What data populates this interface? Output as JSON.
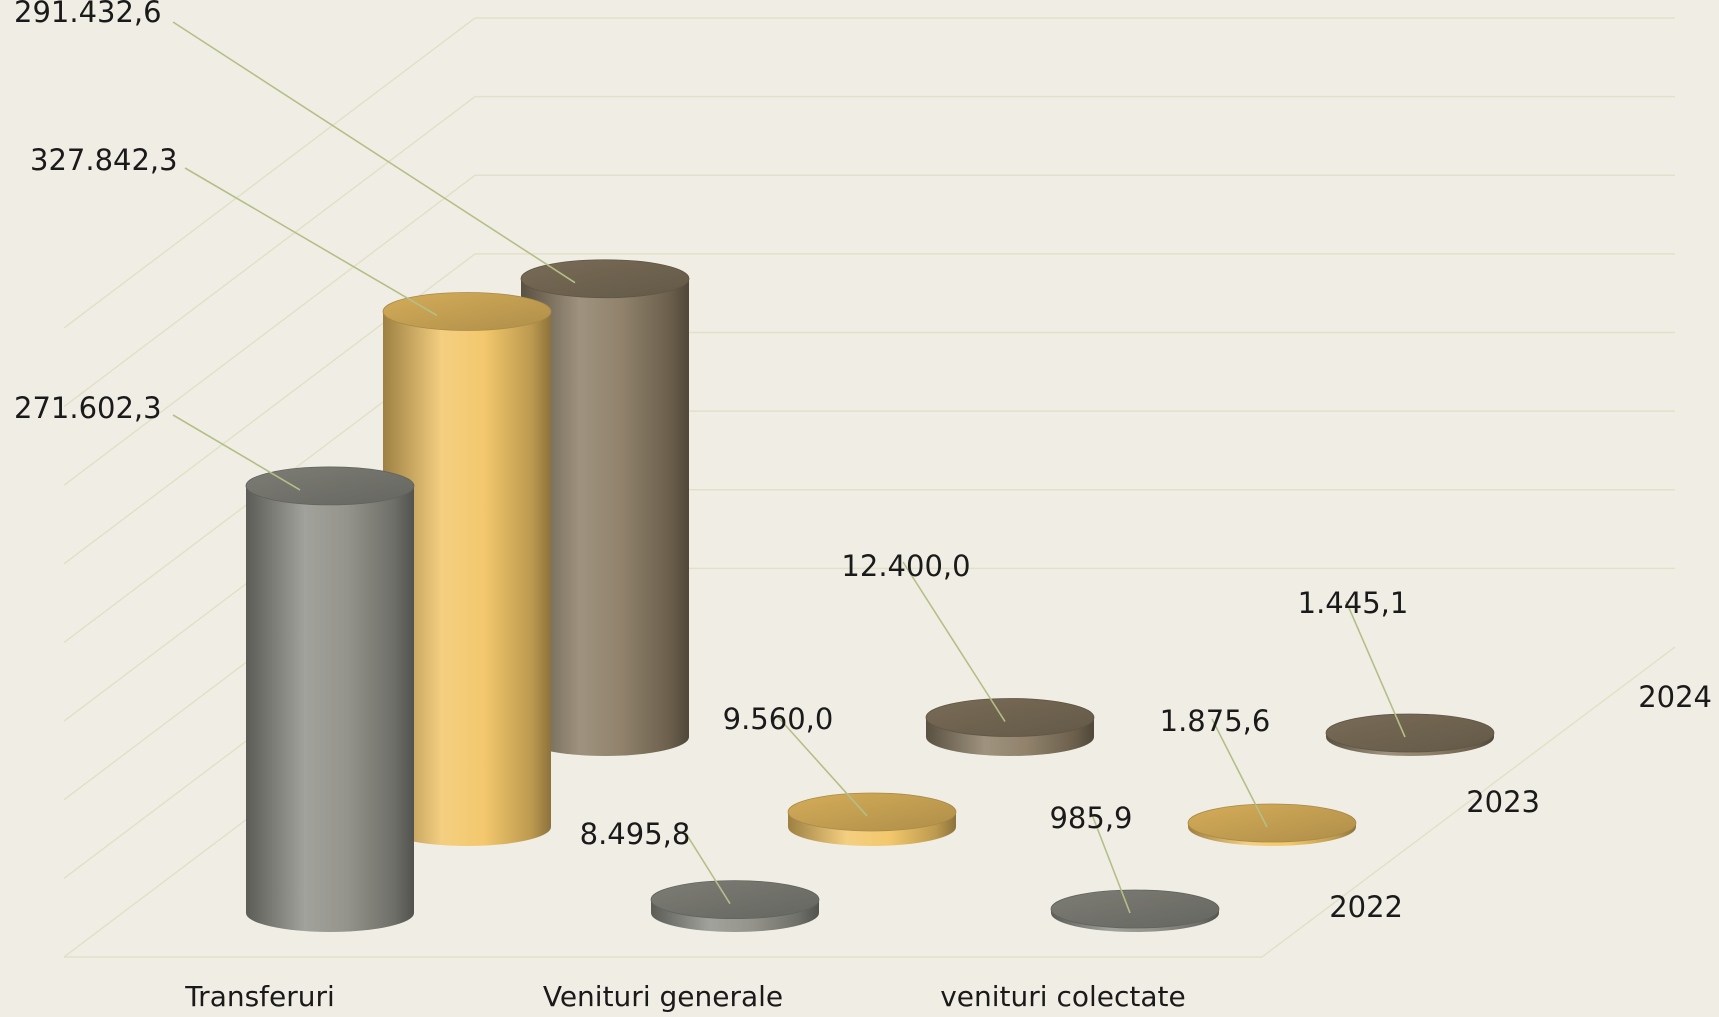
{
  "colors": {
    "background": "#f0eee4",
    "gridline": "#e2e0c8",
    "leader": "#b4bf87",
    "2022": "#8e8e86",
    "2023": "#f2c565",
    "2024": "#8a7b63"
  },
  "chart_data": {
    "type": "bar",
    "style": "3d-cylinder",
    "title": "",
    "xlabel": "",
    "ylabel": "",
    "ylim": [
      0,
      400000
    ],
    "grid": true,
    "categories": [
      "Transferuri",
      "Venituri generale",
      "venituri colectate"
    ],
    "series": [
      {
        "name": "2022",
        "values": [
          271602.3,
          8495.8,
          985.9
        ],
        "labels": [
          "271.602,3",
          "8.495,8",
          "985,9"
        ]
      },
      {
        "name": "2023",
        "values": [
          327842.3,
          9560.0,
          1875.6
        ],
        "labels": [
          "327.842,3",
          "9.560,0",
          "1.875,6"
        ]
      },
      {
        "name": "2024",
        "values": [
          291432.6,
          12400.0,
          1445.1
        ],
        "labels": [
          "291.432,6",
          "12.400,0",
          "1.445,1"
        ]
      }
    ]
  }
}
